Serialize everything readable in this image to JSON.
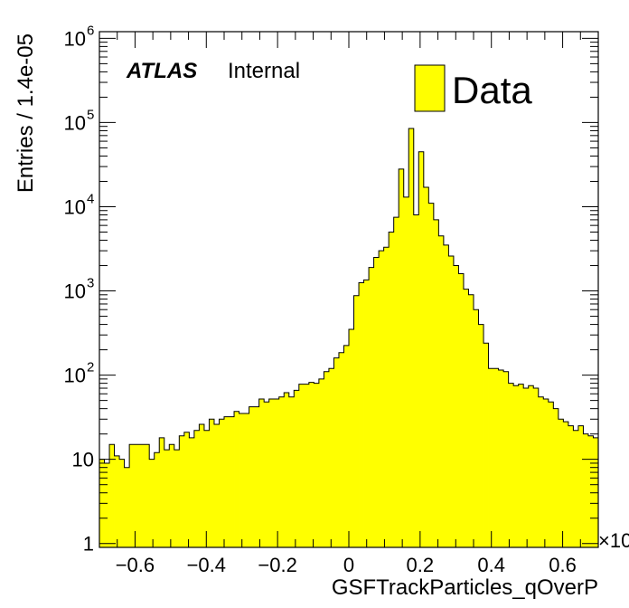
{
  "chart_data": {
    "type": "bar",
    "style": "histogram",
    "xlabel": "GSFTrackParticles_qOverP",
    "ylabel": "Entries / 1.4e-05",
    "x_exponent_label": "×10",
    "x_range": [
      -0.7,
      0.7
    ],
    "y_range": [
      0.9,
      1200000
    ],
    "y_scale": "log",
    "x_ticks": [
      -0.6,
      -0.4,
      -0.2,
      0,
      0.2,
      0.4,
      0.6
    ],
    "x_tick_labels": [
      "−0.6",
      "−0.4",
      "−0.2",
      "0",
      "0.2",
      "0.4",
      "0.6"
    ],
    "y_ticks": [
      {
        "value": 1,
        "base": "1",
        "exp": ""
      },
      {
        "value": 10,
        "base": "10",
        "exp": ""
      },
      {
        "value": 100,
        "base": "10",
        "exp": "2"
      },
      {
        "value": 1000,
        "base": "10",
        "exp": "3"
      },
      {
        "value": 10000,
        "base": "10",
        "exp": "4"
      },
      {
        "value": 100000,
        "base": "10",
        "exp": "5"
      },
      {
        "value": 1000000,
        "base": "10",
        "exp": "6"
      }
    ],
    "bins": {
      "start": -0.7,
      "width": 0.014,
      "count": 100
    },
    "series": [
      {
        "name": "Data",
        "color": "#ffff00",
        "edge_color": "#000000",
        "values": [
          10,
          9,
          15,
          11,
          10,
          8,
          15,
          15,
          15,
          15,
          10,
          12,
          18,
          13,
          15,
          13,
          19,
          21,
          18,
          22,
          26,
          22,
          30,
          26,
          30,
          32,
          32,
          37,
          35,
          35,
          42,
          42,
          52,
          48,
          52,
          52,
          55,
          62,
          55,
          66,
          78,
          78,
          82,
          80,
          90,
          110,
          120,
          160,
          185,
          225,
          350,
          880,
          1250,
          1350,
          1900,
          2500,
          3000,
          3300,
          5000,
          7500,
          28000,
          13000,
          85000,
          8000,
          45000,
          17000,
          11000,
          7000,
          4500,
          3500,
          2600,
          2000,
          1600,
          1050,
          900,
          600,
          400,
          240,
          120,
          120,
          115,
          110,
          80,
          75,
          78,
          70,
          75,
          70,
          55,
          52,
          48,
          40,
          30,
          28,
          25,
          22,
          25,
          20,
          19,
          18
        ]
      }
    ]
  },
  "annotations": {
    "atlas_label": "ATLAS",
    "internal_label": "Internal",
    "legend_entry": "Data"
  }
}
